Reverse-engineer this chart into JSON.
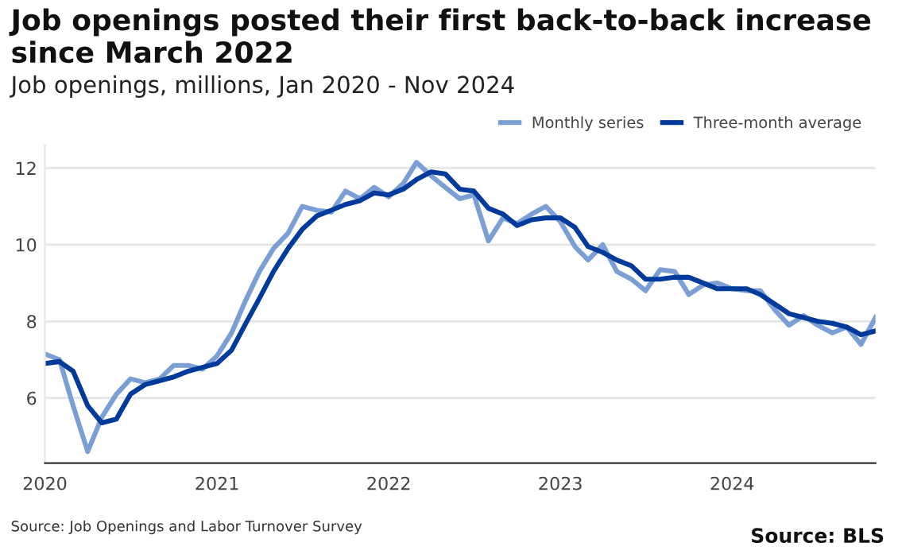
{
  "chart_data": {
    "type": "line",
    "title": "Job openings posted their first back-to-back increase since March 2022",
    "subtitle": "Job openings, millions, Jan 2020 - Nov 2024",
    "annotations": [
      "Source: Job Openings and Labor Turnover Survey",
      "Source: BLS"
    ],
    "x": [
      "2020-01",
      "2020-02",
      "2020-03",
      "2020-04",
      "2020-05",
      "2020-06",
      "2020-07",
      "2020-08",
      "2020-09",
      "2020-10",
      "2020-11",
      "2020-12",
      "2021-01",
      "2021-02",
      "2021-03",
      "2021-04",
      "2021-05",
      "2021-06",
      "2021-07",
      "2021-08",
      "2021-09",
      "2021-10",
      "2021-11",
      "2021-12",
      "2022-01",
      "2022-02",
      "2022-03",
      "2022-04",
      "2022-05",
      "2022-06",
      "2022-07",
      "2022-08",
      "2022-09",
      "2022-10",
      "2022-11",
      "2022-12",
      "2023-01",
      "2023-02",
      "2023-03",
      "2023-04",
      "2023-05",
      "2023-06",
      "2023-07",
      "2023-08",
      "2023-09",
      "2023-10",
      "2023-11",
      "2023-12",
      "2024-01",
      "2024-02",
      "2024-03",
      "2024-04",
      "2024-05",
      "2024-06",
      "2024-07",
      "2024-08",
      "2024-09",
      "2024-10",
      "2024-11"
    ],
    "series": [
      {
        "name": "Monthly series",
        "color": "#7b9fd4",
        "values": [
          7.15,
          7.0,
          5.8,
          4.6,
          5.5,
          6.1,
          6.5,
          6.4,
          6.5,
          6.85,
          6.85,
          6.75,
          7.1,
          7.7,
          8.5,
          9.3,
          9.9,
          10.3,
          11.0,
          10.9,
          10.85,
          11.4,
          11.2,
          11.5,
          11.25,
          11.6,
          12.15,
          11.8,
          11.5,
          11.2,
          11.3,
          10.1,
          10.7,
          10.55,
          10.8,
          11.0,
          10.6,
          9.95,
          9.6,
          10.0,
          9.3,
          9.1,
          8.8,
          9.35,
          9.3,
          8.7,
          8.95,
          9.0,
          8.85,
          8.8,
          8.8,
          8.3,
          7.9,
          8.15,
          7.9,
          7.7,
          7.85,
          7.4,
          8.1
        ]
      },
      {
        "name": "Three-month average",
        "color": "#003a9b",
        "values": [
          6.9,
          6.95,
          6.7,
          5.8,
          5.35,
          5.45,
          6.1,
          6.35,
          6.45,
          6.55,
          6.7,
          6.8,
          6.9,
          7.25,
          7.9,
          8.6,
          9.3,
          9.9,
          10.4,
          10.75,
          10.9,
          11.05,
          11.15,
          11.35,
          11.3,
          11.45,
          11.7,
          11.9,
          11.85,
          11.45,
          11.4,
          10.95,
          10.8,
          10.5,
          10.65,
          10.7,
          10.7,
          10.45,
          9.95,
          9.8,
          9.6,
          9.45,
          9.1,
          9.1,
          9.15,
          9.15,
          9.0,
          8.85,
          8.85,
          8.85,
          8.7,
          8.45,
          8.2,
          8.1,
          8.0,
          7.95,
          7.85,
          7.65,
          7.75
        ]
      }
    ],
    "xlim": [
      "2020-01",
      "2024-11"
    ],
    "xticks": [
      {
        "value": "2020-01",
        "label": "2020"
      },
      {
        "value": "2021-01",
        "label": "2021"
      },
      {
        "value": "2022-01",
        "label": "2022"
      },
      {
        "value": "2023-01",
        "label": "2023"
      },
      {
        "value": "2024-01",
        "label": "2024"
      }
    ],
    "ylim": [
      4.3,
      12.6
    ],
    "yticks": [
      6,
      8,
      10,
      12
    ],
    "grid": "y",
    "legend": "top right",
    "line_style": "solid",
    "marker": "none"
  }
}
